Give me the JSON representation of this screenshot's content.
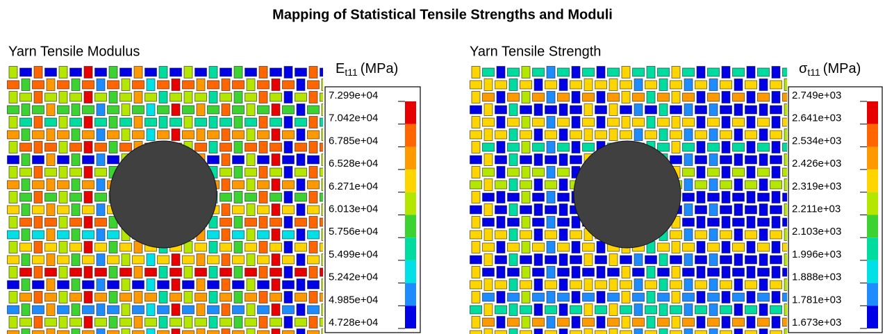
{
  "title": "Mapping of Statistical Tensile Strengths and Moduli",
  "panels": [
    {
      "title": "Yarn Tensile Modulus",
      "legend": {
        "symbol": "E",
        "subscript": "t11",
        "unit": "(MPa)",
        "ticks": [
          "7.299e+04",
          "7.042e+04",
          "6.785e+04",
          "6.528e+04",
          "6.271e+04",
          "6.013e+04",
          "5.756e+04",
          "5.499e+04",
          "5.242e+04",
          "4.985e+04",
          "4.728e+04"
        ]
      }
    },
    {
      "title": "Yarn Tensile Strength",
      "legend": {
        "symbol": "σ",
        "subscript": "t11",
        "unit": "(MPa)",
        "ticks": [
          "2.749e+03",
          "2.641e+03",
          "2.534e+03",
          "2.426e+03",
          "2.319e+03",
          "2.211e+03",
          "2.103e+03",
          "1.996e+03",
          "1.888e+03",
          "1.781e+03",
          "1.673e+03"
        ]
      }
    }
  ]
}
